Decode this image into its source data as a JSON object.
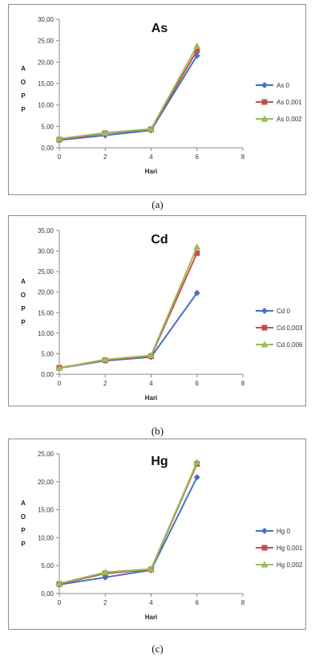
{
  "chart_data": [
    {
      "type": "line",
      "title": "As",
      "xlabel": "Hari",
      "ylabel": "A O P P",
      "x": [
        0,
        2,
        4,
        6
      ],
      "xticks": [
        "0",
        "2",
        "4",
        "6",
        "8"
      ],
      "xlim": [
        0,
        8
      ],
      "ylim": [
        0,
        30
      ],
      "yticks": [
        "0,00",
        "5,00",
        "10,00",
        "15,00",
        "20,00",
        "25,00",
        "30,00"
      ],
      "series": [
        {
          "name": "As 0",
          "values": [
            1.8,
            2.9,
            4.1,
            21.5
          ],
          "color": "#4472c4",
          "marker": "diamond"
        },
        {
          "name": "As 0,001",
          "values": [
            1.9,
            3.4,
            4.3,
            22.7
          ],
          "color": "#c0504d",
          "marker": "square"
        },
        {
          "name": "As 0,002",
          "values": [
            2.1,
            3.5,
            4.4,
            23.8
          ],
          "color": "#9bbb59",
          "marker": "triangle"
        }
      ],
      "legend": "right",
      "caption": "(a)"
    },
    {
      "type": "line",
      "title": "Cd",
      "xlabel": "Hari",
      "ylabel": "A O P P",
      "x": [
        0,
        2,
        4,
        6
      ],
      "xticks": [
        "0",
        "2",
        "4",
        "6",
        "8"
      ],
      "xlim": [
        0,
        8
      ],
      "ylim": [
        0,
        35
      ],
      "yticks": [
        "0,00",
        "5,00",
        "10,00",
        "15,00",
        "20,00",
        "25,00",
        "30,00",
        "35,00"
      ],
      "series": [
        {
          "name": "Cd 0",
          "values": [
            1.5,
            3.3,
            4.2,
            19.8
          ],
          "color": "#4472c4",
          "marker": "diamond"
        },
        {
          "name": "Cd 0,003",
          "values": [
            1.6,
            3.4,
            4.4,
            29.5
          ],
          "color": "#c0504d",
          "marker": "square"
        },
        {
          "name": "Cd 0,006",
          "values": [
            1.5,
            3.6,
            4.6,
            31.0
          ],
          "color": "#9bbb59",
          "marker": "triangle"
        }
      ],
      "legend": "right",
      "caption": "(b)"
    },
    {
      "type": "line",
      "title": "Hg",
      "xlabel": "Hari",
      "ylabel": "A O P P",
      "x": [
        0,
        2,
        4,
        6
      ],
      "xticks": [
        "0",
        "2",
        "4",
        "6",
        "8"
      ],
      "xlim": [
        0,
        8
      ],
      "ylim": [
        0,
        25
      ],
      "yticks": [
        "0,00",
        "5,00",
        "10,00",
        "15,00",
        "20,00",
        "25,00"
      ],
      "series": [
        {
          "name": "Hg 0",
          "values": [
            1.6,
            2.9,
            4.2,
            20.8
          ],
          "color": "#4472c4",
          "marker": "diamond"
        },
        {
          "name": "Hg 0,001",
          "values": [
            1.7,
            3.6,
            4.3,
            23.2
          ],
          "color": "#c0504d",
          "marker": "square"
        },
        {
          "name": "Hg 0,002",
          "values": [
            1.8,
            3.8,
            4.4,
            23.5
          ],
          "color": "#9bbb59",
          "marker": "triangle"
        }
      ],
      "legend": "right",
      "caption": "(c)"
    }
  ]
}
